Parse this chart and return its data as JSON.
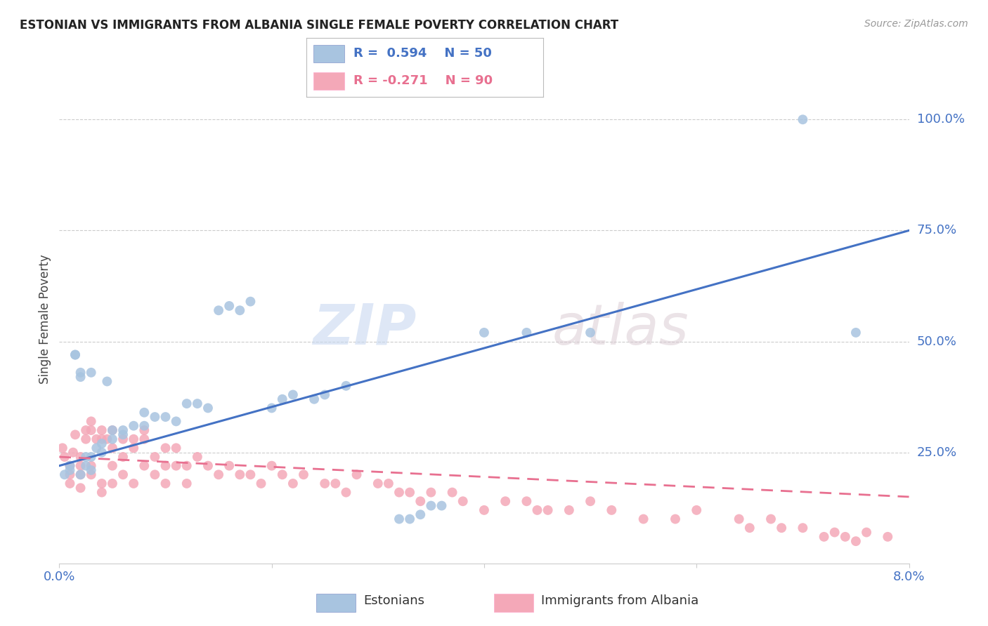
{
  "title": "ESTONIAN VS IMMIGRANTS FROM ALBANIA SINGLE FEMALE POVERTY CORRELATION CHART",
  "source": "Source: ZipAtlas.com",
  "ylabel": "Single Female Poverty",
  "ytick_labels": [
    "100.0%",
    "75.0%",
    "50.0%",
    "25.0%"
  ],
  "ytick_values": [
    1.0,
    0.75,
    0.5,
    0.25
  ],
  "xlim": [
    0.0,
    0.08
  ],
  "ylim": [
    0.0,
    1.1
  ],
  "blue_R": "0.594",
  "blue_N": "50",
  "pink_R": "-0.271",
  "pink_N": "90",
  "legend_label1": "Estonians",
  "legend_label2": "Immigrants from Albania",
  "blue_color": "#A8C4E0",
  "pink_color": "#F4A8B8",
  "blue_line_color": "#4472C4",
  "pink_line_color": "#E87090",
  "watermark_zip": "ZIP",
  "watermark_atlas": "atlas",
  "background_color": "#FFFFFF",
  "blue_scatter_x": [
    0.0005,
    0.001,
    0.001,
    0.0015,
    0.0015,
    0.002,
    0.002,
    0.002,
    0.0025,
    0.0025,
    0.003,
    0.003,
    0.003,
    0.0035,
    0.004,
    0.004,
    0.0045,
    0.005,
    0.005,
    0.006,
    0.006,
    0.007,
    0.008,
    0.008,
    0.009,
    0.01,
    0.011,
    0.012,
    0.013,
    0.014,
    0.015,
    0.016,
    0.017,
    0.018,
    0.02,
    0.021,
    0.022,
    0.024,
    0.025,
    0.027,
    0.032,
    0.033,
    0.034,
    0.035,
    0.036,
    0.04,
    0.044,
    0.05,
    0.07,
    0.075
  ],
  "blue_scatter_y": [
    0.2,
    0.22,
    0.21,
    0.47,
    0.47,
    0.2,
    0.42,
    0.43,
    0.22,
    0.24,
    0.21,
    0.24,
    0.43,
    0.26,
    0.25,
    0.27,
    0.41,
    0.28,
    0.3,
    0.3,
    0.29,
    0.31,
    0.31,
    0.34,
    0.33,
    0.33,
    0.32,
    0.36,
    0.36,
    0.35,
    0.57,
    0.58,
    0.57,
    0.59,
    0.35,
    0.37,
    0.38,
    0.37,
    0.38,
    0.4,
    0.1,
    0.1,
    0.11,
    0.13,
    0.13,
    0.52,
    0.52,
    0.52,
    1.0,
    0.52
  ],
  "pink_scatter_x": [
    0.0003,
    0.0005,
    0.001,
    0.001,
    0.001,
    0.0013,
    0.0015,
    0.002,
    0.002,
    0.002,
    0.002,
    0.0025,
    0.0025,
    0.003,
    0.003,
    0.003,
    0.003,
    0.0035,
    0.004,
    0.004,
    0.004,
    0.004,
    0.0045,
    0.005,
    0.005,
    0.005,
    0.005,
    0.006,
    0.006,
    0.006,
    0.007,
    0.007,
    0.007,
    0.008,
    0.008,
    0.008,
    0.009,
    0.009,
    0.01,
    0.01,
    0.01,
    0.011,
    0.011,
    0.012,
    0.012,
    0.013,
    0.014,
    0.015,
    0.016,
    0.017,
    0.018,
    0.019,
    0.02,
    0.021,
    0.022,
    0.023,
    0.025,
    0.026,
    0.027,
    0.028,
    0.03,
    0.031,
    0.032,
    0.033,
    0.034,
    0.035,
    0.037,
    0.038,
    0.04,
    0.042,
    0.044,
    0.045,
    0.046,
    0.048,
    0.05,
    0.052,
    0.055,
    0.058,
    0.06,
    0.064,
    0.065,
    0.067,
    0.068,
    0.07,
    0.072,
    0.073,
    0.074,
    0.075,
    0.076,
    0.078
  ],
  "pink_scatter_y": [
    0.26,
    0.24,
    0.22,
    0.2,
    0.18,
    0.25,
    0.29,
    0.22,
    0.24,
    0.2,
    0.17,
    0.28,
    0.3,
    0.2,
    0.22,
    0.3,
    0.32,
    0.28,
    0.18,
    0.28,
    0.3,
    0.16,
    0.28,
    0.22,
    0.26,
    0.3,
    0.18,
    0.24,
    0.28,
    0.2,
    0.28,
    0.26,
    0.18,
    0.28,
    0.22,
    0.3,
    0.24,
    0.2,
    0.26,
    0.22,
    0.18,
    0.26,
    0.22,
    0.22,
    0.18,
    0.24,
    0.22,
    0.2,
    0.22,
    0.2,
    0.2,
    0.18,
    0.22,
    0.2,
    0.18,
    0.2,
    0.18,
    0.18,
    0.16,
    0.2,
    0.18,
    0.18,
    0.16,
    0.16,
    0.14,
    0.16,
    0.16,
    0.14,
    0.12,
    0.14,
    0.14,
    0.12,
    0.12,
    0.12,
    0.14,
    0.12,
    0.1,
    0.1,
    0.12,
    0.1,
    0.08,
    0.1,
    0.08,
    0.08,
    0.06,
    0.07,
    0.06,
    0.05,
    0.07,
    0.06
  ]
}
